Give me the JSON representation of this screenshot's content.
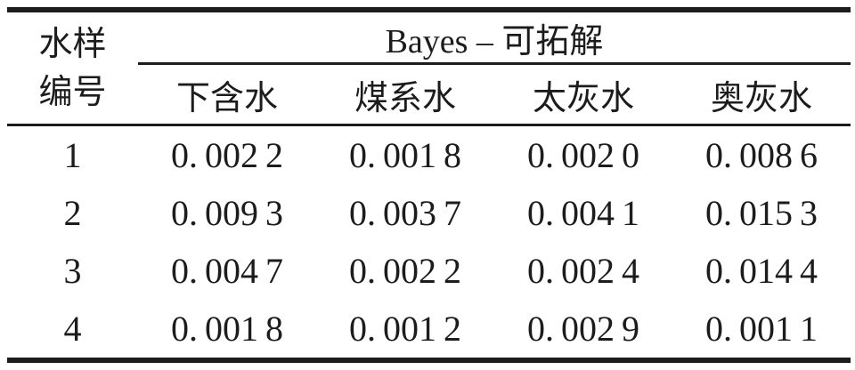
{
  "table": {
    "row_header": {
      "line1": "水样",
      "line2": "编号"
    },
    "group_header": "Bayes – 可拓解",
    "columns": [
      "下含水",
      "煤系水",
      "太灰水",
      "奥灰水"
    ],
    "rows": [
      {
        "no": "1",
        "values": [
          "0. 002 2",
          "0. 001 8",
          "0. 002 0",
          "0. 008 6"
        ]
      },
      {
        "no": "2",
        "values": [
          "0. 009 3",
          "0. 003 7",
          "0. 004 1",
          "0. 015 3"
        ]
      },
      {
        "no": "3",
        "values": [
          "0. 004 7",
          "0. 002 2",
          "0. 002 4",
          "0. 014 4"
        ]
      },
      {
        "no": "4",
        "values": [
          "0. 001 8",
          "0. 001 2",
          "0. 002 9",
          "0. 001 1"
        ]
      }
    ],
    "colors": {
      "text": "#1c1c1c",
      "rule": "#1c1c1c",
      "background": "#ffffff"
    }
  },
  "chart_data": {
    "type": "table",
    "title": "Bayes – 可拓解",
    "row_label": "水样编号",
    "columns": [
      "下含水",
      "煤系水",
      "太灰水",
      "奥灰水"
    ],
    "row_ids": [
      1,
      2,
      3,
      4
    ],
    "values": [
      [
        0.0022,
        0.0018,
        0.002,
        0.0086
      ],
      [
        0.0093,
        0.0037,
        0.0041,
        0.0153
      ],
      [
        0.0047,
        0.0022,
        0.0024,
        0.0144
      ],
      [
        0.0018,
        0.0012,
        0.0029,
        0.0011
      ]
    ]
  }
}
